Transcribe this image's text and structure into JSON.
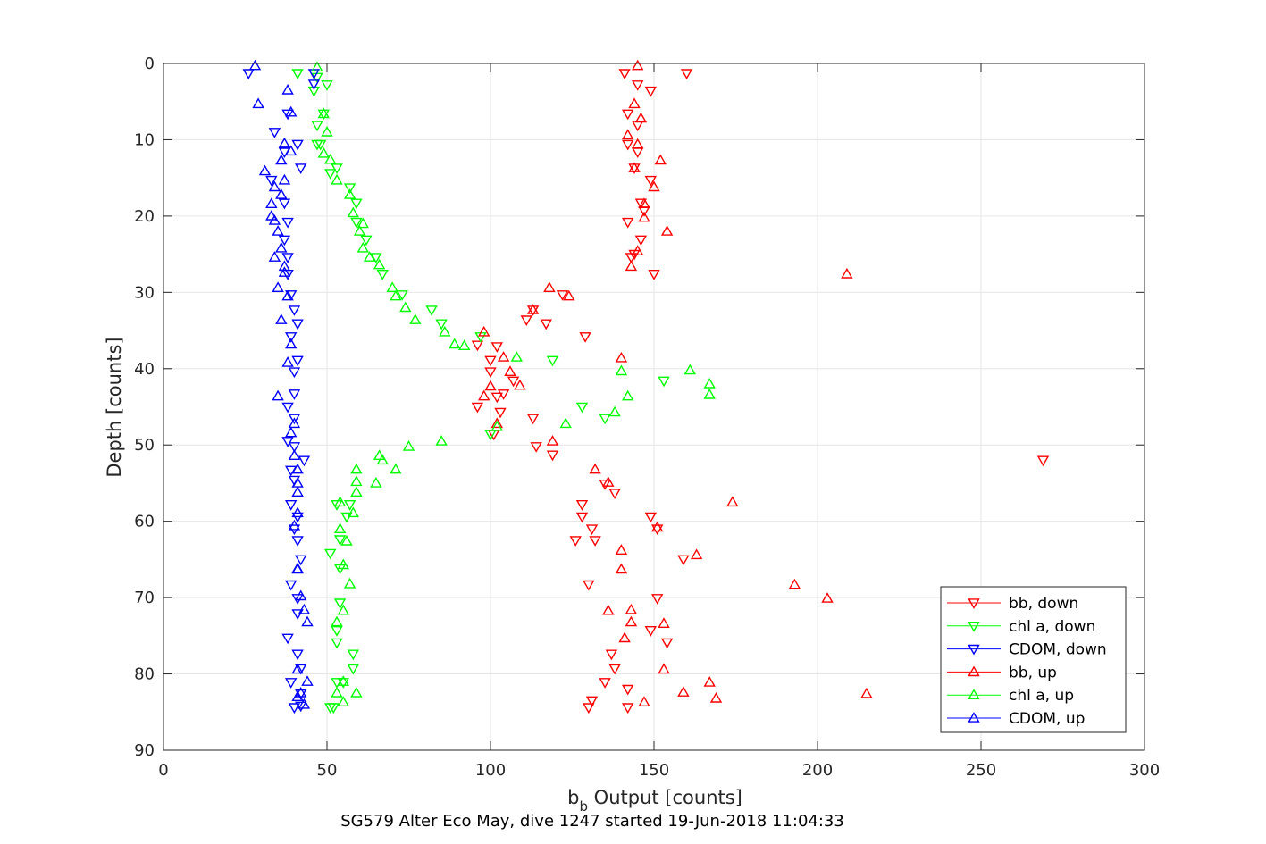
{
  "chart_data": {
    "type": "scatter",
    "title": "",
    "caption": "SG579 Alter Eco May, dive 1247 started 19-Jun-2018 11:04:33",
    "xlabel_main": "b",
    "xlabel_sub": "b",
    "xlabel_rest": " Output [counts]",
    "ylabel": "Depth [counts]",
    "xlim": [
      0,
      300
    ],
    "ylim": [
      0,
      90
    ],
    "y_reversed": true,
    "grid": true,
    "x_ticks": [
      "0",
      "50",
      "100",
      "150",
      "200",
      "250",
      "300"
    ],
    "y_ticks": [
      "0",
      "10",
      "20",
      "30",
      "40",
      "50",
      "60",
      "70",
      "80",
      "90"
    ],
    "legend_position": "bottom-right",
    "series": [
      {
        "name": "bb, down",
        "color": "#ff0000",
        "marker": "triangle-down",
        "points": [
          [
            141,
            1.3
          ],
          [
            160,
            1.3
          ],
          [
            145,
            2.8
          ],
          [
            149,
            3.6
          ],
          [
            142,
            6.6
          ],
          [
            145,
            8.1
          ],
          [
            142,
            10.6
          ],
          [
            145,
            11.6
          ],
          [
            144,
            13.7
          ],
          [
            149,
            15.3
          ],
          [
            146,
            18.3
          ],
          [
            147,
            19.3
          ],
          [
            142,
            20.8
          ],
          [
            146,
            23.1
          ],
          [
            144,
            25.0
          ],
          [
            143,
            25.4
          ],
          [
            150,
            27.6
          ],
          [
            122,
            30.3
          ],
          [
            113,
            32.3
          ],
          [
            117,
            34.1
          ],
          [
            111,
            33.6
          ],
          [
            129,
            35.8
          ],
          [
            96,
            36.9
          ],
          [
            102,
            37.1
          ],
          [
            100,
            38.9
          ],
          [
            100,
            40.4
          ],
          [
            107,
            41.6
          ],
          [
            104,
            43.3
          ],
          [
            102,
            43.7
          ],
          [
            96,
            45.0
          ],
          [
            103,
            45.7
          ],
          [
            113,
            46.5
          ],
          [
            101,
            48.6
          ],
          [
            114,
            50.2
          ],
          [
            119,
            51.3
          ],
          [
            135,
            55.1
          ],
          [
            138,
            56.3
          ],
          [
            128,
            57.8
          ],
          [
            128,
            59.4
          ],
          [
            149,
            59.4
          ],
          [
            131,
            61.0
          ],
          [
            151,
            61.0
          ],
          [
            126,
            62.5
          ],
          [
            132,
            62.5
          ],
          [
            159,
            65.0
          ],
          [
            130,
            68.3
          ],
          [
            151,
            70.1
          ],
          [
            149,
            74.3
          ],
          [
            154,
            75.9
          ],
          [
            137,
            77.4
          ],
          [
            138,
            79.3
          ],
          [
            135,
            81.1
          ],
          [
            142,
            82.0
          ],
          [
            131,
            83.5
          ],
          [
            130,
            84.4
          ],
          [
            142,
            84.4
          ],
          [
            269,
            52.0
          ]
        ]
      },
      {
        "name": "chl a, down",
        "color": "#00ff00",
        "marker": "triangle-down",
        "points": [
          [
            41,
            1.3
          ],
          [
            47,
            1.8
          ],
          [
            50,
            2.8
          ],
          [
            46,
            3.6
          ],
          [
            49,
            6.6
          ],
          [
            47,
            8.1
          ],
          [
            48,
            10.6
          ],
          [
            47,
            10.6
          ],
          [
            53,
            13.7
          ],
          [
            51,
            14.4
          ],
          [
            57,
            16.3
          ],
          [
            59,
            18.3
          ],
          [
            59,
            20.8
          ],
          [
            62,
            23.1
          ],
          [
            65,
            25.4
          ],
          [
            67,
            27.6
          ],
          [
            73,
            30.3
          ],
          [
            82,
            32.3
          ],
          [
            85,
            34.1
          ],
          [
            97,
            35.8
          ],
          [
            119,
            38.9
          ],
          [
            153,
            41.6
          ],
          [
            128,
            45.0
          ],
          [
            135,
            46.5
          ],
          [
            100,
            48.6
          ],
          [
            51,
            64.2
          ],
          [
            54,
            66.2
          ],
          [
            54,
            70.7
          ],
          [
            53,
            74.3
          ],
          [
            53,
            75.9
          ],
          [
            51,
            84.4
          ],
          [
            54,
            62.4
          ],
          [
            57,
            57.8
          ],
          [
            53,
            57.8
          ],
          [
            56,
            59.4
          ],
          [
            58,
            77.4
          ],
          [
            58,
            79.3
          ],
          [
            55,
            81.1
          ],
          [
            53,
            81.1
          ],
          [
            52,
            84.4
          ]
        ]
      },
      {
        "name": "CDOM, down",
        "color": "#0000ff",
        "marker": "triangle-down",
        "points": [
          [
            26,
            1.3
          ],
          [
            46,
            1.3
          ],
          [
            46,
            2.7
          ],
          [
            38,
            6.6
          ],
          [
            34,
            9.0
          ],
          [
            41,
            10.6
          ],
          [
            37,
            11.6
          ],
          [
            42,
            13.7
          ],
          [
            33,
            15.3
          ],
          [
            37,
            18.3
          ],
          [
            38,
            20.8
          ],
          [
            37,
            23.1
          ],
          [
            38,
            25.4
          ],
          [
            38,
            27.6
          ],
          [
            39,
            30.3
          ],
          [
            40,
            32.3
          ],
          [
            41,
            34.1
          ],
          [
            39,
            35.8
          ],
          [
            41,
            38.9
          ],
          [
            40,
            40.4
          ],
          [
            40,
            43.3
          ],
          [
            38,
            45.0
          ],
          [
            40,
            46.5
          ],
          [
            38,
            49.5
          ],
          [
            40,
            50.2
          ],
          [
            43,
            52.0
          ],
          [
            39,
            53.3
          ],
          [
            40,
            54.6
          ],
          [
            39,
            57.8
          ],
          [
            41,
            59.4
          ],
          [
            40,
            61.0
          ],
          [
            41,
            62.5
          ],
          [
            42,
            65.0
          ],
          [
            39,
            68.3
          ],
          [
            41,
            70.1
          ],
          [
            41,
            72.1
          ],
          [
            38,
            75.3
          ],
          [
            41,
            77.4
          ],
          [
            42,
            79.3
          ],
          [
            39,
            81.1
          ],
          [
            42,
            82.6
          ],
          [
            40,
            84.4
          ],
          [
            42,
            84.2
          ]
        ]
      },
      {
        "name": "bb, up",
        "color": "#ff0000",
        "marker": "triangle-up",
        "points": [
          [
            145,
            0.3
          ],
          [
            144,
            5.3
          ],
          [
            146,
            7.2
          ],
          [
            142,
            9.4
          ],
          [
            145,
            10.6
          ],
          [
            152,
            12.7
          ],
          [
            144,
            13.7
          ],
          [
            150,
            16.2
          ],
          [
            147,
            18.4
          ],
          [
            147,
            20.2
          ],
          [
            154,
            22.0
          ],
          [
            145,
            24.6
          ],
          [
            143,
            26.6
          ],
          [
            209,
            27.6
          ],
          [
            118,
            29.4
          ],
          [
            124,
            30.5
          ],
          [
            113,
            32.3
          ],
          [
            98,
            35.2
          ],
          [
            140,
            38.6
          ],
          [
            104,
            38.5
          ],
          [
            106,
            40.4
          ],
          [
            100,
            42.3
          ],
          [
            109,
            42.2
          ],
          [
            98,
            43.6
          ],
          [
            102,
            47.2
          ],
          [
            119,
            49.5
          ],
          [
            132,
            53.2
          ],
          [
            136,
            54.9
          ],
          [
            174,
            57.5
          ],
          [
            151,
            60.8
          ],
          [
            163,
            64.4
          ],
          [
            140,
            63.8
          ],
          [
            140,
            66.3
          ],
          [
            193,
            68.3
          ],
          [
            203,
            70.1
          ],
          [
            136,
            71.7
          ],
          [
            143,
            71.6
          ],
          [
            143,
            73.2
          ],
          [
            153,
            73.4
          ],
          [
            141,
            75.3
          ],
          [
            153,
            79.4
          ],
          [
            167,
            81.1
          ],
          [
            159,
            82.4
          ],
          [
            169,
            83.2
          ],
          [
            147,
            83.7
          ],
          [
            215,
            82.6
          ]
        ]
      },
      {
        "name": "chl a, up",
        "color": "#00ff00",
        "marker": "triangle-up",
        "points": [
          [
            47,
            0.5
          ],
          [
            49,
            6.6
          ],
          [
            50,
            9.0
          ],
          [
            49,
            11.8
          ],
          [
            51,
            12.6
          ],
          [
            53,
            15.3
          ],
          [
            57,
            17.2
          ],
          [
            58,
            19.6
          ],
          [
            61,
            21.0
          ],
          [
            60,
            22.0
          ],
          [
            61,
            24.2
          ],
          [
            63,
            25.4
          ],
          [
            66,
            26.4
          ],
          [
            70,
            29.4
          ],
          [
            71,
            30.5
          ],
          [
            74,
            32.0
          ],
          [
            77,
            33.6
          ],
          [
            86,
            35.2
          ],
          [
            89,
            36.8
          ],
          [
            92,
            37.0
          ],
          [
            108,
            38.5
          ],
          [
            140,
            40.3
          ],
          [
            161,
            40.2
          ],
          [
            167,
            42.0
          ],
          [
            167,
            43.4
          ],
          [
            142,
            43.6
          ],
          [
            138,
            45.7
          ],
          [
            123,
            47.2
          ],
          [
            102,
            47.6
          ],
          [
            75,
            50.2
          ],
          [
            85,
            49.5
          ],
          [
            66,
            51.4
          ],
          [
            67,
            52.0
          ],
          [
            71,
            53.2
          ],
          [
            65,
            55.0
          ],
          [
            59,
            53.2
          ],
          [
            59,
            54.8
          ],
          [
            59,
            56.2
          ],
          [
            54,
            57.5
          ],
          [
            58,
            58.9
          ],
          [
            54,
            61.0
          ],
          [
            56,
            62.6
          ],
          [
            55,
            65.7
          ],
          [
            57,
            68.2
          ],
          [
            55,
            71.7
          ],
          [
            53,
            73.2
          ],
          [
            55,
            81.0
          ],
          [
            53,
            82.5
          ],
          [
            55,
            83.7
          ],
          [
            59,
            82.5
          ]
        ]
      },
      {
        "name": "CDOM, up",
        "color": "#0000ff",
        "marker": "triangle-up",
        "points": [
          [
            28,
            0.3
          ],
          [
            38,
            3.5
          ],
          [
            29,
            5.3
          ],
          [
            39,
            6.4
          ],
          [
            37,
            10.5
          ],
          [
            39,
            11.5
          ],
          [
            36,
            12.7
          ],
          [
            31,
            14.1
          ],
          [
            37,
            15.3
          ],
          [
            34,
            16.2
          ],
          [
            36,
            17.2
          ],
          [
            33,
            18.4
          ],
          [
            33,
            20.0
          ],
          [
            34,
            20.6
          ],
          [
            35,
            22.0
          ],
          [
            36,
            24.2
          ],
          [
            34,
            25.4
          ],
          [
            37,
            26.6
          ],
          [
            37,
            27.4
          ],
          [
            35,
            29.4
          ],
          [
            38,
            30.5
          ],
          [
            36,
            33.6
          ],
          [
            39,
            36.8
          ],
          [
            38,
            39.2
          ],
          [
            35,
            43.6
          ],
          [
            40,
            47.2
          ],
          [
            39,
            48.4
          ],
          [
            40,
            51.4
          ],
          [
            41,
            53.2
          ],
          [
            41,
            55.0
          ],
          [
            41,
            56.2
          ],
          [
            41,
            58.9
          ],
          [
            40,
            60.6
          ],
          [
            41,
            66.3
          ],
          [
            41,
            66.2
          ],
          [
            42,
            69.8
          ],
          [
            43,
            71.6
          ],
          [
            44,
            73.2
          ],
          [
            41,
            79.4
          ],
          [
            44,
            81.0
          ],
          [
            42,
            82.5
          ],
          [
            43,
            84.0
          ],
          [
            41,
            83.0
          ]
        ]
      }
    ]
  }
}
